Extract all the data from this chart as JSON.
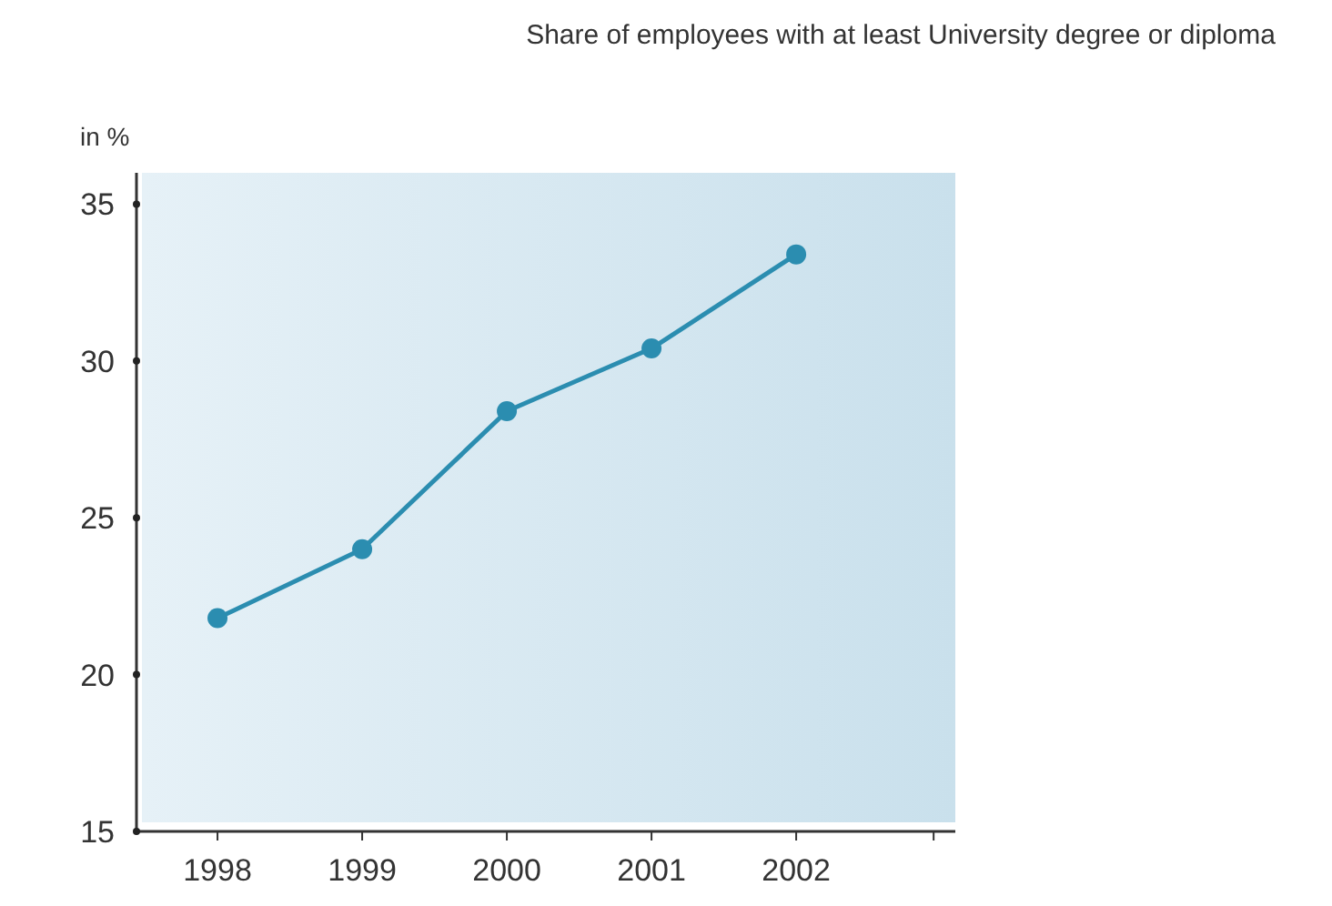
{
  "chart_data": {
    "type": "line",
    "title": "Share of employees with at least University degree or diploma",
    "ylabel": "in %",
    "categories": [
      "1998",
      "1999",
      "2000",
      "2001",
      "2002"
    ],
    "series": [
      {
        "color": "#2b8db0",
        "values": [
          21.8,
          24.0,
          28.4,
          30.4,
          33.4
        ]
      }
    ],
    "ylim": [
      15,
      36
    ],
    "yticks": [
      15,
      20,
      25,
      30,
      35
    ],
    "marker": "circle",
    "line_style": "solid",
    "grid": false
  }
}
